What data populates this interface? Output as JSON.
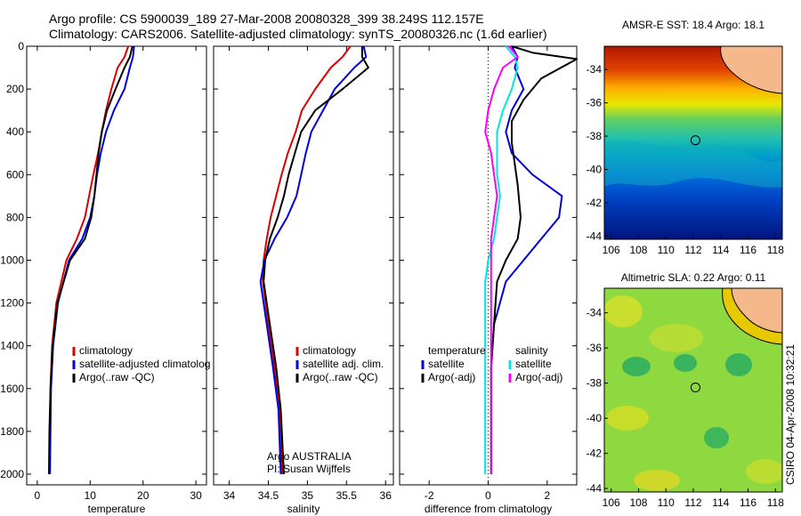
{
  "header": {
    "line1": "Argo profile: CS 5900039_189 27-Mar-2008 20080328_399 38.249S 112.157E",
    "line2": "Climatology: CARS2006. Satellite-adjusted climatology: synTS_20080326.nc (1.6d earlier)"
  },
  "credit": {
    "org": "Argo AUSTRALIA",
    "pi": "PI: Susan Wijffels",
    "stamp": "CSIRO 04-Apr-2008 10:32:21"
  },
  "colors": {
    "climatology": "#dd0000",
    "satellite": "#0000dd",
    "argo": "#000000",
    "satellite_salinity": "#00e5e5",
    "argo_adj_salinity": "#ff00ff"
  },
  "chart_data": [
    {
      "type": "line",
      "id": "temperature",
      "xlabel": "temperature",
      "ylabel": "",
      "xlim": [
        -2,
        32
      ],
      "ylim": [
        2050,
        0
      ],
      "xticks": [
        0,
        10,
        20,
        30
      ],
      "yticks": [
        0,
        200,
        400,
        600,
        800,
        1000,
        1200,
        1400,
        1600,
        1800,
        2000
      ],
      "legend": [
        "climatology",
        "satellite-adjusted climatolog",
        "Argo(..raw -QC)"
      ],
      "series": [
        {
          "name": "climatology",
          "color": "#dd0000",
          "x": [
            17.2,
            16.5,
            15.2,
            14.0,
            13.0,
            12.2,
            11.5,
            10.6,
            9.8,
            9.0,
            7.5,
            5.5,
            3.6,
            2.8,
            2.5,
            2.4,
            2.4
          ],
          "y": [
            0,
            50,
            100,
            200,
            300,
            400,
            500,
            600,
            700,
            800,
            900,
            1000,
            1200,
            1400,
            1600,
            1800,
            2000
          ]
        },
        {
          "name": "satellite-adjusted climatolog",
          "color": "#0000dd",
          "x": [
            18.3,
            18.1,
            17.5,
            16.5,
            14.5,
            13.0,
            12.0,
            11.3,
            10.8,
            10.0,
            8.5,
            6.0,
            3.9,
            3.0,
            2.6,
            2.5,
            2.4
          ],
          "y": [
            0,
            50,
            100,
            200,
            300,
            400,
            500,
            600,
            700,
            800,
            900,
            1000,
            1200,
            1400,
            1600,
            1800,
            2000
          ]
        },
        {
          "name": "Argo(..raw -QC)",
          "color": "#000000",
          "x": [
            18.0,
            17.5,
            16.5,
            14.8,
            13.2,
            12.2,
            11.6,
            11.2,
            10.8,
            10.2,
            9.0,
            6.2,
            3.8,
            2.9,
            2.5,
            2.3,
            2.2
          ],
          "y": [
            0,
            50,
            100,
            200,
            300,
            400,
            500,
            600,
            700,
            800,
            900,
            1000,
            1200,
            1400,
            1600,
            1800,
            2000
          ]
        }
      ]
    },
    {
      "type": "line",
      "id": "salinity",
      "xlabel": "salinity",
      "ylabel": "",
      "xlim": [
        33.8,
        36.1
      ],
      "ylim": [
        2050,
        0
      ],
      "xticks": [
        34,
        34.5,
        35,
        35.5,
        36
      ],
      "yticks": [
        0,
        200,
        400,
        600,
        800,
        1000,
        1200,
        1400,
        1600,
        1800,
        2000
      ],
      "legend": [
        "climatology",
        "satellite adj. clim.",
        "Argo(..raw -QC)"
      ],
      "series": [
        {
          "name": "climatology",
          "color": "#dd0000",
          "x": [
            35.55,
            35.45,
            35.3,
            35.1,
            34.93,
            34.85,
            34.75,
            34.67,
            34.6,
            34.53,
            34.48,
            34.44,
            34.43,
            34.5,
            34.58,
            34.64,
            34.68
          ],
          "y": [
            0,
            50,
            100,
            200,
            300,
            400,
            500,
            600,
            700,
            800,
            900,
            1000,
            1100,
            1300,
            1500,
            1700,
            2000
          ]
        },
        {
          "name": "satellite adj. clim.",
          "color": "#0000dd",
          "x": [
            35.72,
            35.75,
            35.6,
            35.35,
            35.2,
            35.05,
            34.98,
            34.92,
            34.86,
            34.74,
            34.58,
            34.45,
            34.4,
            34.48,
            34.56,
            34.63,
            34.66
          ],
          "y": [
            0,
            50,
            100,
            200,
            300,
            400,
            500,
            600,
            700,
            800,
            900,
            1000,
            1100,
            1300,
            1500,
            1700,
            2000
          ]
        },
        {
          "name": "Argo(..raw -QC)",
          "color": "#000000",
          "x": [
            35.7,
            35.7,
            35.78,
            35.45,
            35.1,
            34.92,
            34.84,
            34.76,
            34.7,
            34.62,
            34.52,
            34.46,
            34.44,
            34.52,
            34.6,
            34.66,
            34.7
          ],
          "y": [
            0,
            50,
            100,
            200,
            300,
            400,
            500,
            600,
            700,
            800,
            900,
            1000,
            1100,
            1300,
            1500,
            1700,
            2000
          ]
        }
      ]
    },
    {
      "type": "line",
      "id": "difference",
      "xlabel": "difference from climatology",
      "ylabel": "",
      "xlim": [
        -3,
        3
      ],
      "ylim": [
        2050,
        0
      ],
      "xticks": [
        -2,
        0,
        2
      ],
      "yticks": [
        0,
        200,
        400,
        600,
        800,
        1000,
        1200,
        1400,
        1600,
        1800,
        2000
      ],
      "zero_line": 0,
      "legend": [
        "temperature",
        "satellite",
        "Argo(-adj)",
        "salinity",
        "satellite",
        "Argo(-adj)"
      ],
      "legend_headers": [
        "temperature",
        "salinity"
      ],
      "series": [
        {
          "name": "temperature satellite",
          "color": "#0000dd",
          "x": [
            0.8,
            1.0,
            0.9,
            1.2,
            0.8,
            0.6,
            0.8,
            1.5,
            2.5,
            2.4,
            1.8,
            1.2,
            0.6,
            0.2,
            0.1,
            0.1,
            0.1
          ],
          "y": [
            0,
            50,
            100,
            200,
            300,
            400,
            500,
            600,
            700,
            800,
            900,
            1000,
            1100,
            1300,
            1500,
            1700,
            2000
          ]
        },
        {
          "name": "temperature Argo(-adj)",
          "color": "#000000",
          "x": [
            0.8,
            1.5,
            3.0,
            1.8,
            1.2,
            0.8,
            0.8,
            0.9,
            1.0,
            1.1,
            1.0,
            0.6,
            0.3,
            0.2,
            0.1,
            0.1,
            0.1
          ],
          "y": [
            0,
            30,
            60,
            150,
            250,
            350,
            450,
            550,
            650,
            800,
            900,
            1000,
            1100,
            1300,
            1500,
            1700,
            2000
          ]
        },
        {
          "name": "salinity satellite",
          "color": "#00e5e5",
          "x": [
            0.6,
            0.9,
            1.0,
            0.8,
            0.5,
            0.3,
            0.3,
            0.3,
            0.4,
            0.3,
            0.2,
            0.0,
            -0.1,
            -0.1,
            -0.1,
            -0.1,
            -0.1
          ],
          "y": [
            0,
            50,
            100,
            200,
            300,
            400,
            500,
            600,
            700,
            800,
            900,
            1000,
            1100,
            1300,
            1500,
            1700,
            2000
          ]
        },
        {
          "name": "salinity Argo(-adj)",
          "color": "#ff00ff",
          "x": [
            0.7,
            1.0,
            0.5,
            0.2,
            0.0,
            -0.1,
            0.1,
            0.2,
            0.3,
            0.2,
            0.1,
            0.1,
            0.1,
            0.1,
            0.1,
            0.1,
            0.1
          ],
          "y": [
            0,
            50,
            100,
            200,
            300,
            400,
            500,
            600,
            700,
            800,
            900,
            1000,
            1100,
            1300,
            1500,
            1700,
            2000
          ]
        }
      ]
    },
    {
      "type": "heatmap",
      "id": "sst_map",
      "title": "AMSR-E SST: 18.4 Argo: 18.1",
      "xlim": [
        105.5,
        118.5
      ],
      "ylim": [
        -44.2,
        -32.6
      ],
      "xticks": [
        106,
        108,
        110,
        112,
        114,
        116,
        118
      ],
      "yticks": [
        -34,
        -36,
        -38,
        -40,
        -42,
        -44
      ],
      "marker": {
        "lon": 112.157,
        "lat": -38.249
      }
    },
    {
      "type": "heatmap",
      "id": "sla_map",
      "title": "Altimetric SLA: 0.22 Argo: 0.11",
      "xlim": [
        105.5,
        118.5
      ],
      "ylim": [
        -44.2,
        -32.6
      ],
      "xticks": [
        106,
        108,
        110,
        112,
        114,
        116,
        118
      ],
      "yticks": [
        -34,
        -36,
        -38,
        -40,
        -42,
        -44
      ],
      "marker": {
        "lon": 112.157,
        "lat": -38.249
      }
    }
  ]
}
